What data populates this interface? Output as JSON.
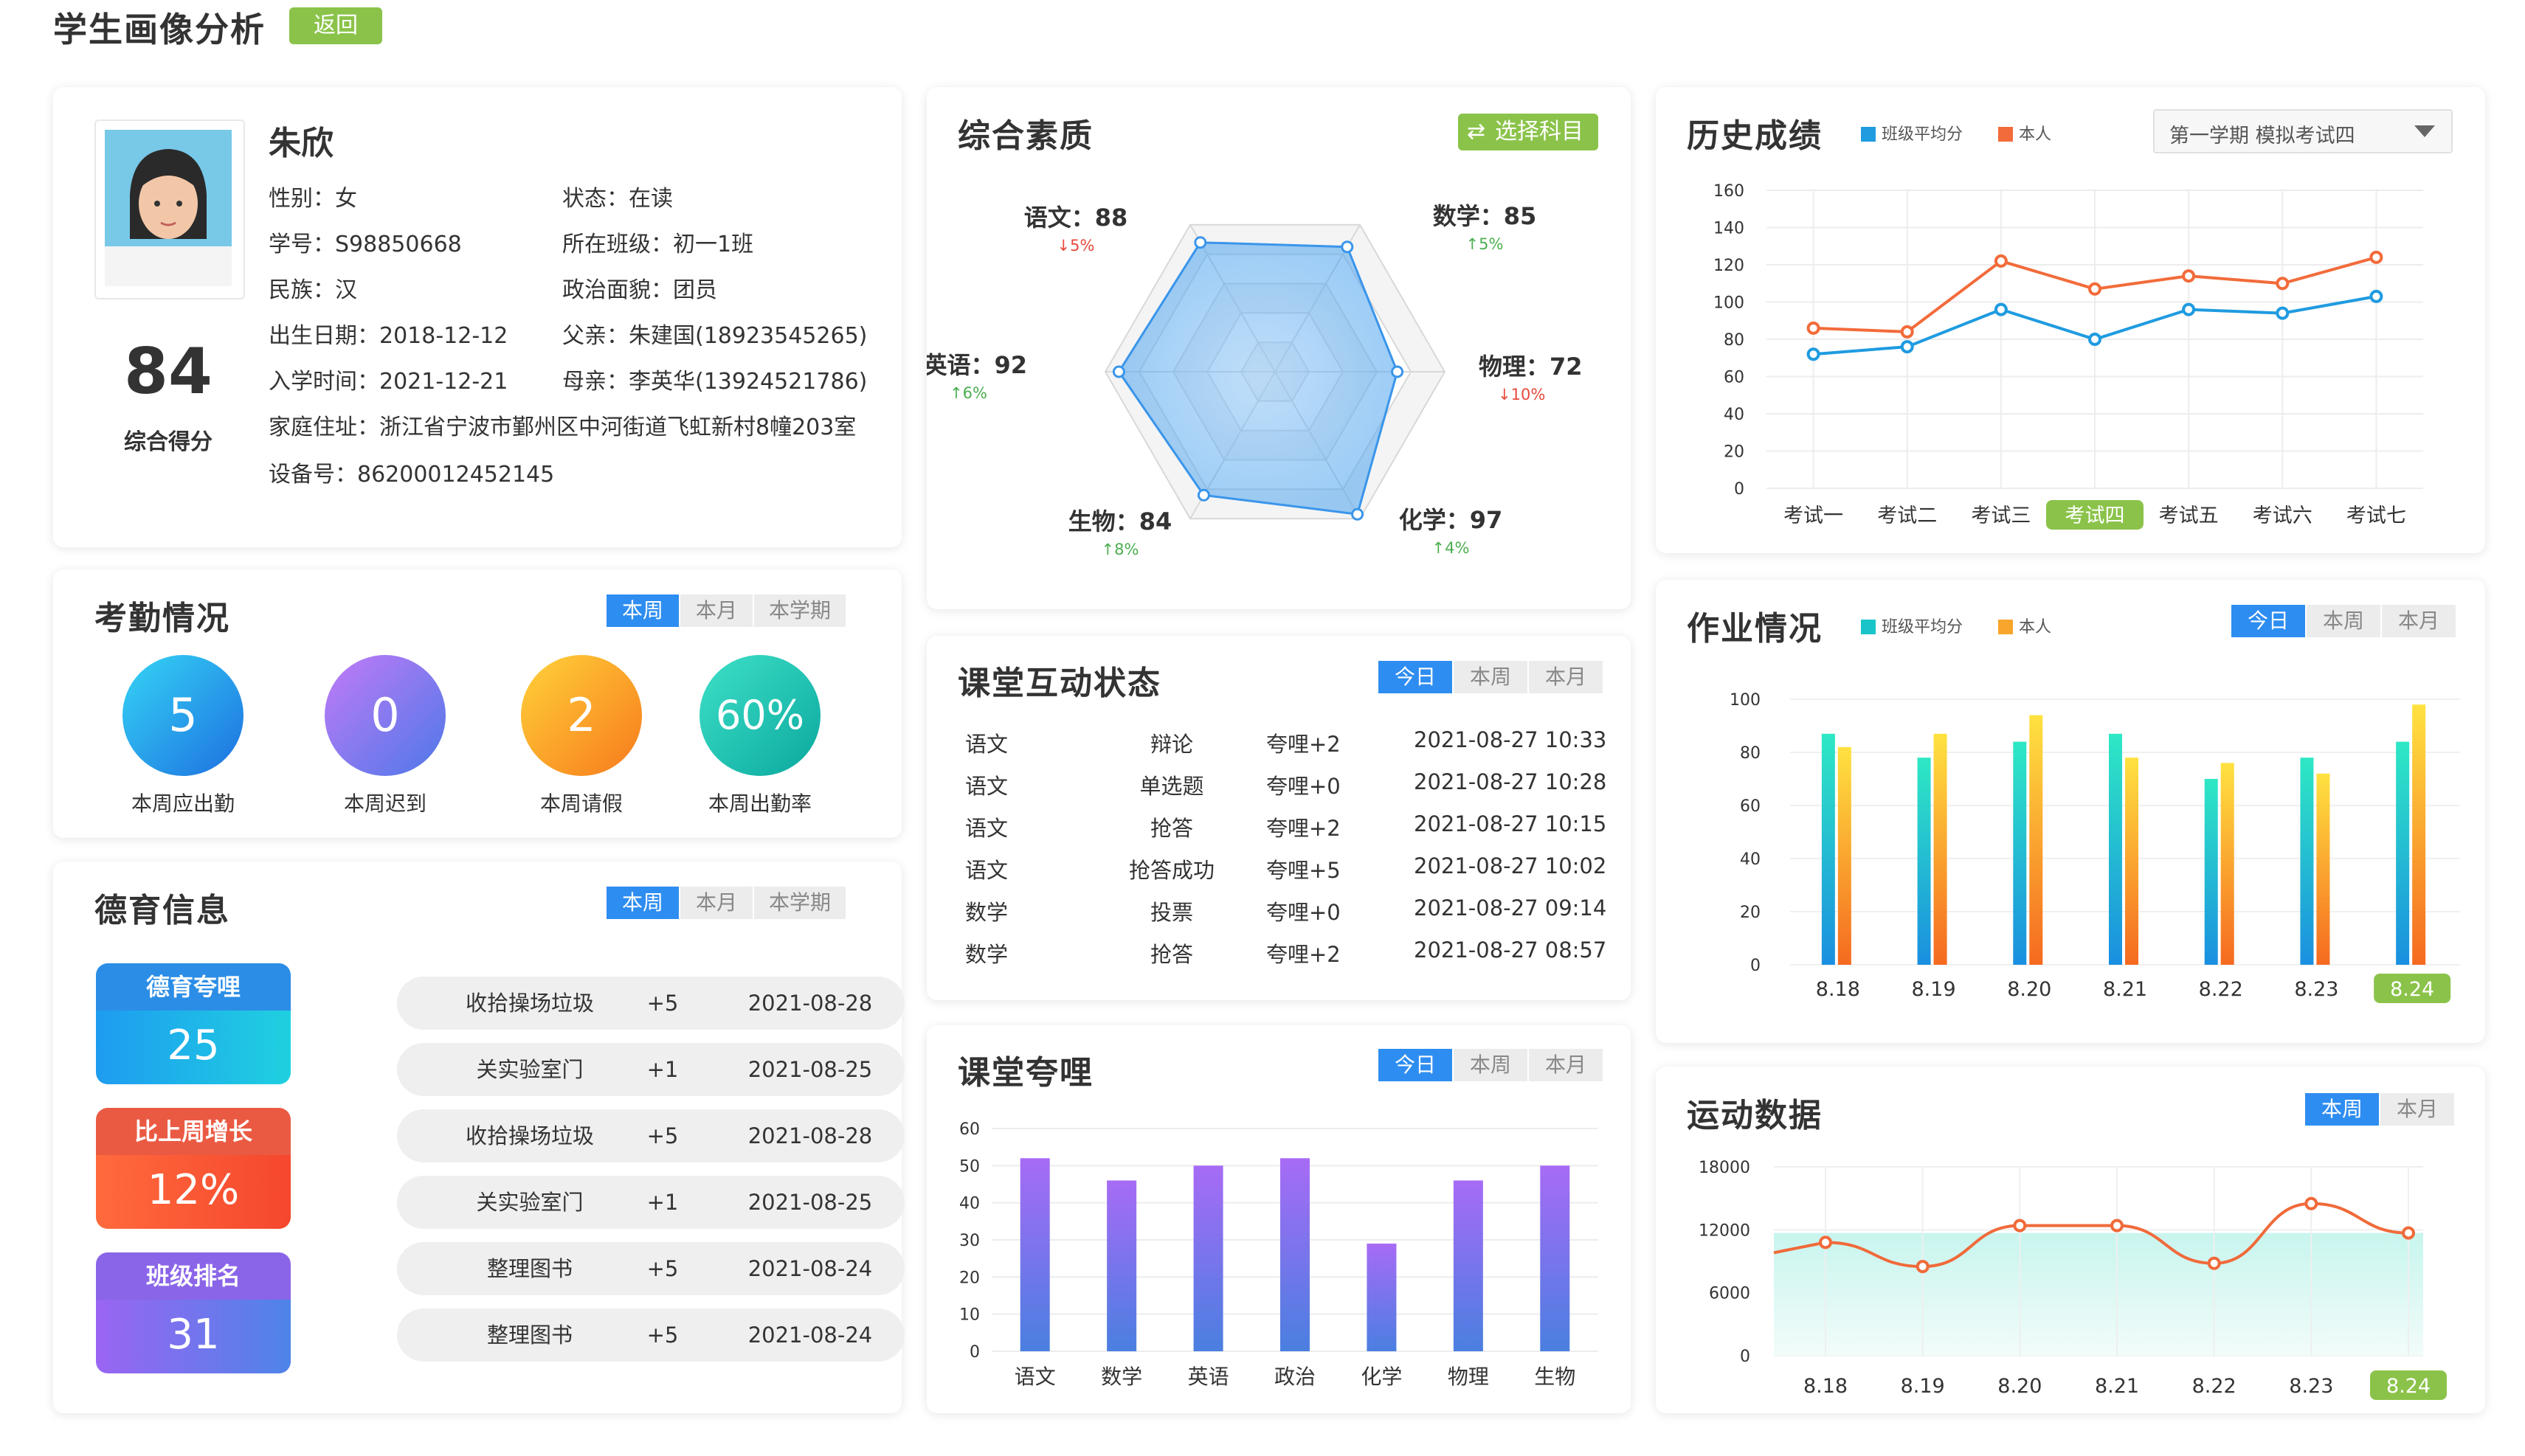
{
  "header": {
    "title": "学生画像分析",
    "back_label": "返回"
  },
  "profile": {
    "name": "朱欣",
    "score": "84",
    "score_label": "综合得分",
    "rows": [
      "性别：女",
      "学号：S98850668",
      "民族：汉",
      "出生日期：2018-12-12",
      "入学时间：2021-12-21",
      "家庭住址：浙江省宁波市鄞州区中河街道飞虹新村8幢203室",
      "设备号：86200012452145"
    ],
    "rows_right": [
      "状态：在读",
      "所在班级：初一1班",
      "政治面貌：团员",
      "父亲：朱建国(18923545265)",
      "母亲：李英华(13924521786)"
    ]
  },
  "attendance": {
    "title": "考勤情况",
    "tabs": [
      "本周",
      "本月",
      "本学期"
    ],
    "items": [
      {
        "value": "5",
        "label": "本周应出勤"
      },
      {
        "value": "0",
        "label": "本周迟到"
      },
      {
        "value": "2",
        "label": "本周请假"
      },
      {
        "value": "60%",
        "label": "本周出勤率"
      }
    ]
  },
  "moral": {
    "title": "德育信息",
    "tabs": [
      "本周",
      "本月",
      "本学期"
    ],
    "badges": [
      {
        "label": "德育夸哩",
        "value": "25"
      },
      {
        "label": "比上周增长",
        "value": "12%"
      },
      {
        "label": "班级排名",
        "value": "31"
      }
    ],
    "records": [
      {
        "item": "收拾操场垃圾",
        "points": "+5",
        "date": "2021-08-28"
      },
      {
        "item": "关实验室门",
        "points": "+1",
        "date": "2021-08-25"
      },
      {
        "item": "收拾操场垃圾",
        "points": "+5",
        "date": "2021-08-28"
      },
      {
        "item": "关实验室门",
        "points": "+1",
        "date": "2021-08-25"
      },
      {
        "item": "整理图书",
        "points": "+5",
        "date": "2021-08-24"
      },
      {
        "item": "整理图书",
        "points": "+5",
        "date": "2021-08-24"
      }
    ]
  },
  "quality": {
    "title": "综合素质",
    "button_label": "选择科目",
    "subjects": [
      {
        "label": "语文：88",
        "change": "↓5%",
        "dir": "down"
      },
      {
        "label": "数学：85",
        "change": "↑5%",
        "dir": "up"
      },
      {
        "label": "物理：72",
        "change": "↓10%",
        "dir": "down"
      },
      {
        "label": "化学：97",
        "change": "↑4%",
        "dir": "up"
      },
      {
        "label": "生物：84",
        "change": "↑8%",
        "dir": "up"
      },
      {
        "label": "英语：92",
        "change": "↑6%",
        "dir": "up"
      }
    ]
  },
  "interaction": {
    "title": "课堂互动状态",
    "tabs": [
      "今日",
      "本周",
      "本月"
    ],
    "rows": [
      [
        "语文",
        "辩论",
        "夸哩+2",
        "2021-08-27 10:33"
      ],
      [
        "语文",
        "单选题",
        "夸哩+0",
        "2021-08-27 10:28"
      ],
      [
        "语文",
        "抢答",
        "夸哩+2",
        "2021-08-27 10:15"
      ],
      [
        "语文",
        "抢答成功",
        "夸哩+5",
        "2021-08-27 10:02"
      ],
      [
        "数学",
        "投票",
        "夸哩+0",
        "2021-08-27 09:14"
      ],
      [
        "数学",
        "抢答",
        "夸哩+2",
        "2021-08-27 08:57"
      ]
    ]
  },
  "praise": {
    "title": "课堂夸哩",
    "tabs": [
      "今日",
      "本周",
      "本月"
    ]
  },
  "history": {
    "title": "历史成绩",
    "legend": [
      "班级平均分",
      "本人"
    ],
    "select_value": "第一学期 模拟考试四"
  },
  "homework": {
    "title": "作业情况",
    "legend": [
      "班级平均分",
      "本人"
    ],
    "tabs": [
      "今日",
      "本周",
      "本月"
    ]
  },
  "sports": {
    "title": "运动数据",
    "tabs": [
      "本周",
      "本月"
    ]
  },
  "colors": {
    "accent": "#2e8df0",
    "green": "#8bc34a",
    "history_class": "#1f9be0",
    "history_self": "#f26b3a",
    "praise_bar_top": "#a76bf5",
    "praise_bar_bottom": "#4a7fe0",
    "up": "#4caf50",
    "down": "#e84a3c"
  },
  "chart_data": [
    {
      "type": "radar",
      "name": "综合素质",
      "axes": [
        "语文",
        "数学",
        "物理",
        "化学",
        "生物",
        "英语"
      ],
      "values": [
        88,
        85,
        72,
        97,
        84,
        92
      ]
    },
    {
      "type": "bar",
      "name": "课堂夸哩",
      "categories": [
        "语文",
        "数学",
        "英语",
        "政治",
        "化学",
        "物理",
        "生物"
      ],
      "values": [
        52,
        46,
        50,
        52,
        29,
        46,
        50
      ],
      "ylim": [
        0,
        60
      ],
      "yticks": [
        0,
        10,
        20,
        30,
        40,
        50,
        60
      ]
    },
    {
      "type": "line",
      "name": "历史成绩",
      "categories": [
        "考试一",
        "考试二",
        "考试三",
        "考试四",
        "考试五",
        "考试六",
        "考试七"
      ],
      "highlight": "考试四",
      "series": [
        {
          "name": "班级平均分",
          "values": [
            72,
            76,
            96,
            80,
            96,
            94,
            103
          ]
        },
        {
          "name": "本人",
          "values": [
            86,
            84,
            122,
            107,
            114,
            110,
            124
          ]
        }
      ],
      "ylim": [
        0,
        160
      ],
      "yticks": [
        0,
        20,
        40,
        60,
        80,
        100,
        120,
        140,
        160
      ]
    },
    {
      "type": "bar",
      "name": "作业情况",
      "categories": [
        "8.18",
        "8.19",
        "8.20",
        "8.21",
        "8.22",
        "8.23",
        "8.24"
      ],
      "highlight": "8.24",
      "series": [
        {
          "name": "班级平均分",
          "values": [
            87,
            78,
            84,
            87,
            70,
            78,
            84
          ]
        },
        {
          "name": "本人",
          "values": [
            82,
            87,
            94,
            78,
            76,
            72,
            98
          ]
        }
      ],
      "ylim": [
        0,
        100
      ],
      "yticks": [
        0,
        20,
        40,
        60,
        80,
        100
      ]
    },
    {
      "type": "area",
      "name": "运动数据",
      "categories": [
        "8.18",
        "8.19",
        "8.20",
        "8.21",
        "8.22",
        "8.23",
        "8.24"
      ],
      "highlight": "8.24",
      "values": [
        10800,
        8500,
        12400,
        12400,
        8800,
        14500,
        11700
      ],
      "band": 11700,
      "ylim": [
        0,
        18000
      ],
      "yticks": [
        0,
        6000,
        12000,
        18000
      ]
    }
  ]
}
